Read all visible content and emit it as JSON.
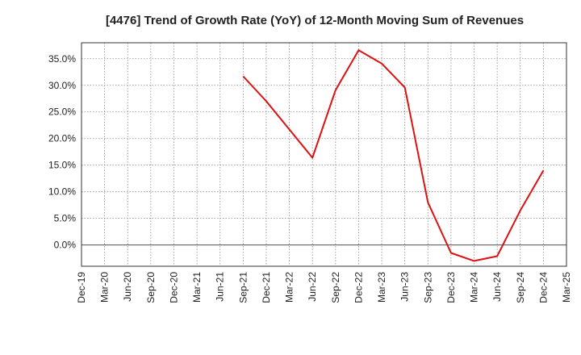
{
  "chart_data": {
    "type": "line",
    "title": "[4476]  Trend of Growth Rate (YoY) of 12-Month Moving Sum of Revenues",
    "xlabel": "",
    "ylabel": "",
    "x_tick_labels": [
      "Dec-19",
      "Mar-20",
      "Jun-20",
      "Sep-20",
      "Dec-20",
      "Mar-21",
      "Jun-21",
      "Sep-21",
      "Dec-21",
      "Mar-22",
      "Jun-22",
      "Sep-22",
      "Dec-22",
      "Mar-23",
      "Jun-23",
      "Sep-23",
      "Dec-23",
      "Mar-24",
      "Jun-24",
      "Sep-24",
      "Dec-24",
      "Mar-25"
    ],
    "y_ticks": [
      0,
      5,
      10,
      15,
      20,
      25,
      30,
      35
    ],
    "y_tick_labels": [
      "0.0%",
      "5.0%",
      "10.0%",
      "15.0%",
      "20.0%",
      "25.0%",
      "30.0%",
      "35.0%"
    ],
    "ylim": [
      -4,
      38
    ],
    "grid": true,
    "series": [
      {
        "color": "#dd1111",
        "x": [
          "Sep-21",
          "Dec-21",
          "Mar-22",
          "Jun-22",
          "Sep-22",
          "Dec-22",
          "Mar-23",
          "Jun-23",
          "Sep-23",
          "Dec-23",
          "Mar-24",
          "Jun-24",
          "Sep-24",
          "Dec-24"
        ],
        "values": [
          31.7,
          27.0,
          21.7,
          16.4,
          29.1,
          36.6,
          34.1,
          29.6,
          8.0,
          -1.5,
          -3.0,
          -2.1,
          6.5,
          14.0
        ]
      }
    ]
  }
}
